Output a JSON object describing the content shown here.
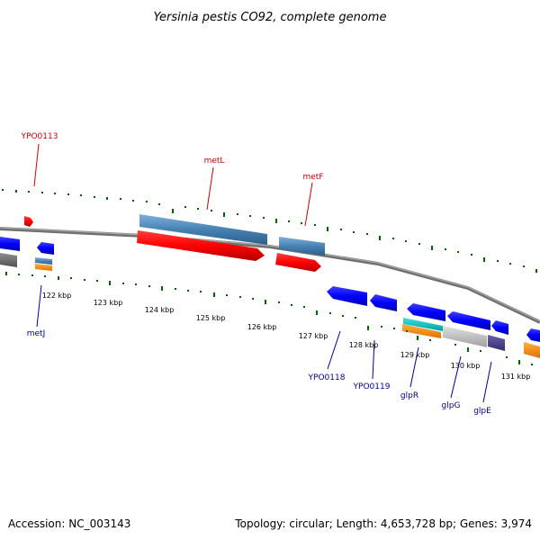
{
  "title": "Yersinia pestis CO92, complete genome",
  "footer": {
    "accession": "Accession: NC_003143",
    "summary": "Topology: circular; Length: 4,653,728 bp; Genes: 3,974"
  },
  "scale_labels": [
    "122 kbp",
    "123 kbp",
    "124 kbp",
    "125 kbp",
    "126 kbp",
    "127 kbp",
    "128 kbp",
    "129 kbp",
    "130 kbp",
    "131 kbp"
  ],
  "gene_labels": {
    "YPO0113": "YPO0113",
    "metL": "metL",
    "metF": "metF",
    "metJ": "metJ",
    "YPO0118": "YPO0118",
    "YPO0119": "YPO0119",
    "glpR": "glpR",
    "glpG": "glpG",
    "glpE": "glpE"
  },
  "colors": {
    "backbone": "#808080",
    "forward_cds": "#ff0000",
    "forward_gene": "#4682b4",
    "reverse_cds": "#0000ff",
    "tick": "#006400",
    "label_forward": "#cc0000",
    "label_reverse": "#000099",
    "orange": "#ff8c00",
    "cyan": "#00c8c8",
    "gray": "#b0b0b0",
    "purple": "#483d8b"
  }
}
